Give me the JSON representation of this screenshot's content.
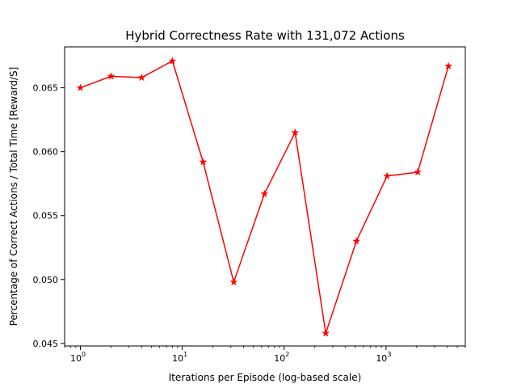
{
  "chart_data": {
    "type": "line",
    "title": "Hybrid Correctness Rate with 131,072 Actions",
    "xlabel": "Iterations per Episode (log-based scale)",
    "ylabel": "Percentage of Correct Actions / Total Time [Reward/S]",
    "x_scale": "log",
    "xlim": [
      0.7,
      6000
    ],
    "ylim": [
      0.0448,
      0.0682
    ],
    "x_ticks": [
      {
        "value": 1,
        "base": "10",
        "exp": "0"
      },
      {
        "value": 10,
        "base": "10",
        "exp": "1"
      },
      {
        "value": 100,
        "base": "10",
        "exp": "2"
      },
      {
        "value": 1000,
        "base": "10",
        "exp": "3"
      }
    ],
    "y_ticks": [
      0.045,
      0.05,
      0.055,
      0.06,
      0.065
    ],
    "y_tick_labels": [
      "0.045",
      "0.050",
      "0.055",
      "0.060",
      "0.065"
    ],
    "grid": false,
    "series": [
      {
        "color": "#ff0000",
        "marker": "star",
        "x": [
          1,
          2,
          4,
          8,
          16,
          32,
          64,
          128,
          256,
          512,
          1024,
          2048,
          4096
        ],
        "y": [
          0.065,
          0.0659,
          0.0658,
          0.0671,
          0.0592,
          0.0498,
          0.0567,
          0.0615,
          0.0458,
          0.053,
          0.0581,
          0.0584,
          0.0667
        ]
      }
    ]
  }
}
